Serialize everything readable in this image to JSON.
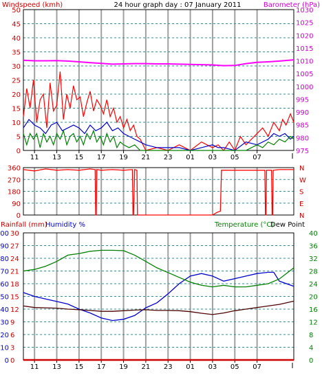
{
  "title": "24 hour graph day : 07 January 2011",
  "chart_data": [
    {
      "id": "wind_baro",
      "type": "line",
      "left_label": "Windspeed (kmh)",
      "right_label": "Barometer (hPa)",
      "left_ticks": [
        "0",
        "5",
        "10",
        "15",
        "20",
        "25",
        "30",
        "35",
        "40",
        "45",
        "50"
      ],
      "left_range": [
        0,
        50
      ],
      "right_ticks": [
        "975",
        "980",
        "985",
        "990",
        "995",
        "1000",
        "1005",
        "1010",
        "1015",
        "1020",
        "1025",
        "1030"
      ],
      "right_range": [
        975,
        1030
      ],
      "x_ticks": [
        "11",
        "13",
        "15",
        "17",
        "19",
        "21",
        "23",
        "01",
        "03",
        "05",
        "07"
      ],
      "x_range": [
        10,
        34.3
      ],
      "grid": true,
      "colors": {
        "gust": "#ff0000",
        "speed": "#0000cc",
        "average": "#008000",
        "barometer": "#ff00ff"
      },
      "series": [
        {
          "key": "gust",
          "axis": "left",
          "color": "#ff0000",
          "x": [
            10,
            10.3,
            10.6,
            10.9,
            11.2,
            11.5,
            11.8,
            12.1,
            12.4,
            12.7,
            13,
            13.3,
            13.6,
            13.9,
            14.2,
            14.5,
            14.8,
            15.1,
            15.4,
            15.7,
            16,
            16.3,
            16.6,
            16.9,
            17.2,
            17.5,
            17.8,
            18.1,
            18.4,
            18.7,
            19,
            19.3,
            19.6,
            19.9,
            20.2,
            20.5,
            21,
            22,
            23,
            24,
            25,
            26,
            27,
            27.5,
            28,
            28.5,
            29,
            29.5,
            30,
            30.5,
            31,
            31.5,
            32,
            32.5,
            33,
            33.3,
            33.6,
            34,
            34.3
          ],
          "y": [
            12,
            22,
            15,
            25,
            10,
            18,
            20,
            8,
            24,
            14,
            16,
            28,
            11,
            20,
            15,
            23,
            18,
            19,
            12,
            17,
            21,
            14,
            18,
            16,
            13,
            18,
            12,
            15,
            10,
            12,
            8,
            11,
            7,
            9,
            5,
            4,
            0,
            1,
            0,
            2,
            0,
            3,
            1,
            2,
            0,
            3,
            0,
            5,
            2,
            4,
            6,
            8,
            5,
            10,
            7,
            11,
            9,
            13,
            10
          ]
        },
        {
          "key": "speed",
          "axis": "left",
          "color": "#0000cc",
          "x": [
            10,
            10.5,
            11,
            11.5,
            12,
            12.5,
            13,
            13.5,
            14,
            14.5,
            15,
            15.5,
            16,
            16.5,
            17,
            17.5,
            18,
            18.5,
            19,
            19.5,
            20,
            20.5,
            21,
            22,
            23,
            24,
            25,
            26,
            27,
            27.5,
            28,
            29,
            30,
            31,
            32,
            32.5,
            33,
            33.5,
            34,
            34.3
          ],
          "y": [
            8,
            11,
            9,
            8,
            6,
            9,
            10,
            7,
            8,
            9,
            8,
            6,
            9,
            7,
            8,
            10,
            7,
            8,
            6,
            5,
            4,
            3,
            2,
            1,
            1,
            1,
            0,
            1,
            2,
            1,
            1,
            0,
            3,
            2,
            4,
            6,
            5,
            6,
            4,
            5
          ]
        },
        {
          "key": "average",
          "axis": "left",
          "color": "#008000",
          "x": [
            10,
            10.3,
            10.6,
            10.9,
            11.2,
            11.5,
            11.8,
            12.1,
            12.4,
            12.7,
            13,
            13.3,
            13.6,
            13.9,
            14.2,
            14.5,
            14.8,
            15.1,
            15.4,
            15.7,
            16,
            16.3,
            16.6,
            16.9,
            17.2,
            17.5,
            17.8,
            18.1,
            18.4,
            18.7,
            19,
            19.5,
            20,
            20.5,
            21,
            22,
            23,
            24,
            25,
            26,
            27,
            28,
            29,
            30,
            31,
            31.5,
            32,
            32.5,
            33,
            33.5,
            34,
            34.3
          ],
          "y": [
            6,
            2,
            6,
            4,
            6,
            1,
            6,
            3,
            5,
            2,
            6,
            4,
            7,
            2,
            5,
            6,
            3,
            5,
            2,
            6,
            4,
            7,
            3,
            5,
            2,
            6,
            3,
            5,
            1,
            3,
            2,
            1,
            2,
            0,
            0,
            0,
            0,
            0,
            0,
            0,
            0,
            0,
            0,
            0,
            2,
            1,
            3,
            2,
            4,
            3,
            5,
            4
          ]
        },
        {
          "key": "barometer",
          "axis": "right",
          "color": "#ff00ff",
          "x": [
            10,
            11,
            12,
            13,
            14,
            15,
            16,
            17,
            18,
            19,
            20,
            21,
            22,
            23,
            24,
            25,
            26,
            27,
            28,
            29,
            30,
            31,
            32,
            33,
            34.3
          ],
          "y": [
            1010.2,
            1010.0,
            1010.0,
            1010.1,
            1009.9,
            1009.6,
            1009.3,
            1009.0,
            1008.7,
            1008.8,
            1008.9,
            1008.9,
            1008.8,
            1008.8,
            1008.7,
            1008.6,
            1008.5,
            1008.4,
            1008.1,
            1008.2,
            1008.9,
            1009.4,
            1009.6,
            1009.9,
            1010.4
          ]
        }
      ]
    },
    {
      "id": "direction",
      "type": "line",
      "left_ticks": [
        "0",
        "90",
        "180",
        "270",
        "360"
      ],
      "left_range": [
        0,
        360
      ],
      "right_ticks": [
        "N",
        "E",
        "S",
        "W",
        "N"
      ],
      "x_range": [
        10,
        34.3
      ],
      "grid": true,
      "colors": {
        "direction": "#ff0000"
      },
      "series": [
        {
          "key": "direction",
          "axis": "left",
          "color": "#ff0000",
          "x": [
            10,
            11,
            12,
            13,
            14,
            15,
            16,
            16.45,
            16.5,
            16.55,
            16.6,
            17,
            18,
            19,
            19.8,
            19.85,
            19.9,
            20,
            20.2,
            20.25,
            20.3,
            20.35,
            21,
            23,
            25,
            27,
            27.4,
            27.7,
            27.8,
            27.9,
            28,
            29,
            31,
            31.7,
            31.75,
            31.8,
            31.85,
            32.3,
            32.35,
            32.4,
            32.45,
            33,
            34.3
          ],
          "y": [
            345,
            335,
            350,
            340,
            345,
            340,
            350,
            345,
            0,
            0,
            345,
            340,
            345,
            340,
            345,
            0,
            0,
            345,
            340,
            0,
            0,
            0,
            0,
            0,
            0,
            0,
            20,
            30,
            340,
            340,
            340,
            340,
            340,
            340,
            0,
            0,
            340,
            340,
            0,
            0,
            340,
            345,
            345
          ]
        }
      ]
    },
    {
      "id": "rain_hum_temp",
      "type": "line",
      "rain_label": "Rainfall (mm)",
      "humidity_label": "Humidity %",
      "temperature_label": "Temperature (°C)",
      "dewpoint_label": "Dew Point",
      "humidity_ticks": [
        "0",
        "10",
        "20",
        "30",
        "40",
        "50",
        "60",
        "70",
        "80",
        "90",
        "100"
      ],
      "humidity_range": [
        0,
        100
      ],
      "rain_ticks": [
        "0",
        "3",
        "6",
        "9",
        "12",
        "15",
        "18",
        "21",
        "24",
        "27",
        "30"
      ],
      "rain_range": [
        0,
        30
      ],
      "temperature_ticks": [
        "0",
        "4",
        "8",
        "12",
        "16",
        "20",
        "24",
        "28",
        "32",
        "36",
        "40"
      ],
      "temperature_range": [
        0,
        40
      ],
      "x_ticks": [
        "11",
        "13",
        "15",
        "17",
        "19",
        "21",
        "23",
        "01",
        "03",
        "05",
        "07"
      ],
      "x_range": [
        10,
        34.3
      ],
      "grid": true,
      "colors": {
        "rain": "#cc0000",
        "humidity": "#0000cc",
        "temperature": "#008000",
        "dewpoint": "#4a0000"
      },
      "series": [
        {
          "key": "rain",
          "axis": "rain",
          "color": "#cc0000",
          "x": [
            10,
            34.3
          ],
          "y": [
            0,
            0
          ]
        },
        {
          "key": "humidity",
          "axis": "humidity",
          "color": "#0000cc",
          "x": [
            10,
            11,
            12,
            13,
            14,
            15,
            16,
            17,
            18,
            19,
            20,
            21,
            22,
            23,
            24,
            25,
            26,
            27,
            28,
            29,
            30,
            31,
            32,
            32.5,
            33,
            34.3
          ],
          "y": [
            53,
            50,
            48,
            46,
            44,
            40,
            37,
            33,
            31,
            32,
            35,
            41,
            45,
            52,
            60,
            66,
            68,
            66,
            62,
            64,
            66,
            68,
            69,
            69,
            62,
            58
          ]
        },
        {
          "key": "temperature",
          "axis": "temperature",
          "color": "#008000",
          "x": [
            10,
            11,
            12,
            13,
            14,
            15,
            16,
            17,
            18,
            19,
            20,
            21,
            22,
            23,
            24,
            25,
            26,
            27,
            28,
            29,
            30,
            31,
            32,
            33,
            34.3
          ],
          "y": [
            28,
            28.5,
            29.5,
            31,
            33,
            33.5,
            34.2,
            34.5,
            34.5,
            34.4,
            33,
            31,
            29,
            27.5,
            26,
            24.5,
            23.5,
            23,
            23.5,
            23,
            23,
            23.5,
            24,
            25.5,
            29
          ]
        },
        {
          "key": "dewpoint",
          "axis": "temperature",
          "color": "#4a0000",
          "x": [
            10,
            11,
            12,
            13,
            14,
            15,
            16,
            17,
            18,
            19,
            20,
            21,
            22,
            23,
            24,
            25,
            26,
            27,
            28,
            29,
            30,
            31,
            32,
            33,
            34.3
          ],
          "y": [
            17,
            16.5,
            16.4,
            16.3,
            16,
            15.8,
            15.6,
            15.3,
            15.3,
            15.5,
            15.7,
            15.8,
            15.6,
            15.6,
            15.5,
            15.2,
            14.7,
            14.3,
            14.8,
            15.5,
            16,
            16.5,
            17,
            17.5,
            18.5
          ]
        }
      ]
    }
  ]
}
